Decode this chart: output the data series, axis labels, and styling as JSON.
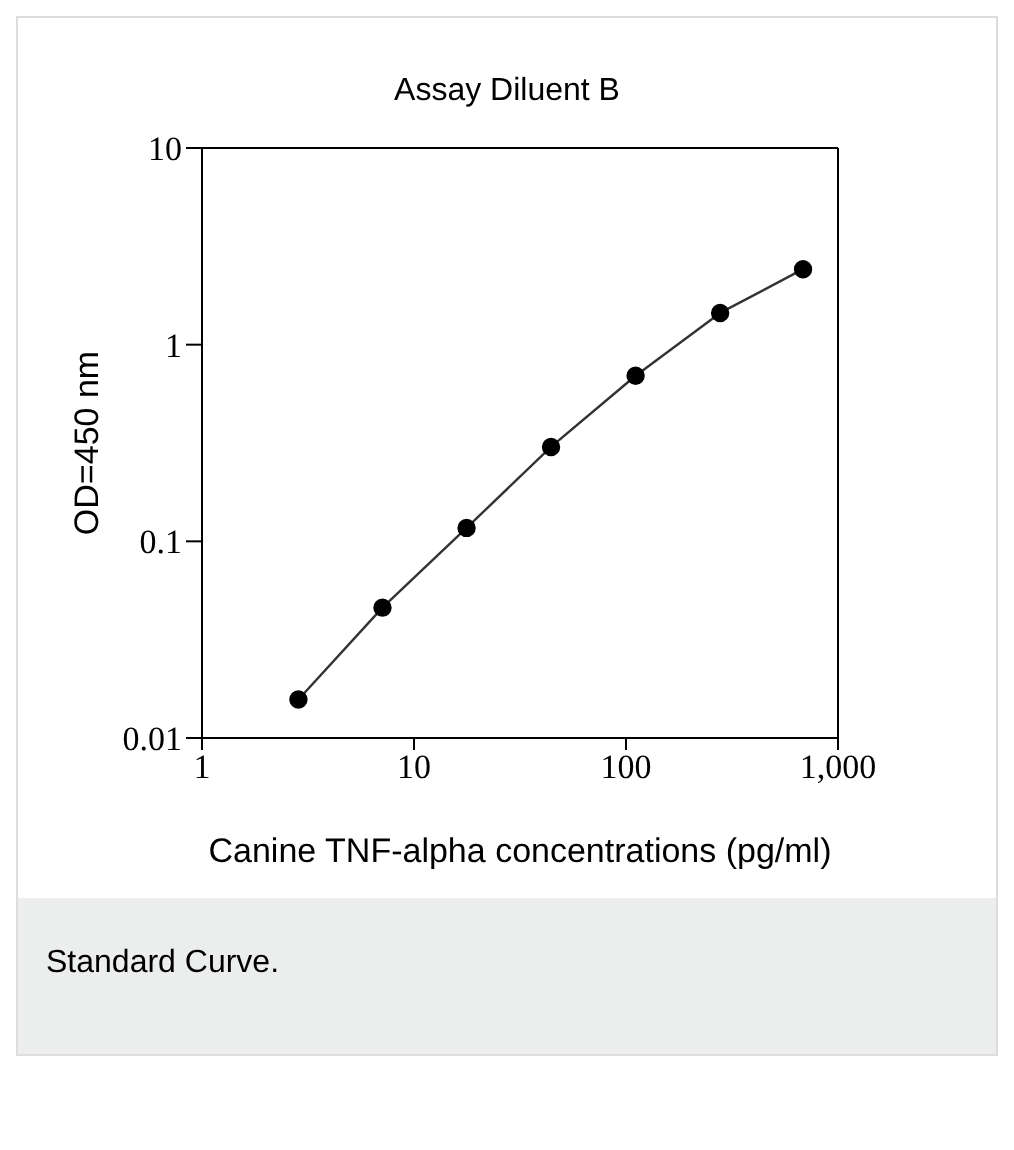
{
  "chart_data": {
    "type": "line",
    "title": "Assay Diluent B",
    "xlabel": "Canine TNF-alpha concentrations (pg/ml)",
    "ylabel": "OD=450 nm",
    "annotations": [
      "Standard Curve."
    ],
    "log": "xy",
    "marker": "circle",
    "line_style": "solid",
    "x": [
      2.85,
      7.1,
      17.7,
      44.3,
      111,
      278,
      684
    ],
    "series": [
      {
        "color": "#000000",
        "values": [
          0.0157,
          0.046,
          0.117,
          0.302,
          0.695,
          1.45,
          2.42
        ]
      }
    ],
    "xlim": [
      1,
      1000
    ],
    "xticks": [
      1,
      10,
      100,
      {
        "value": 1000,
        "label": "1,000"
      }
    ],
    "ylim": [
      0.01,
      10
    ],
    "yticks": [
      0.01,
      0.1,
      1,
      10
    ]
  }
}
